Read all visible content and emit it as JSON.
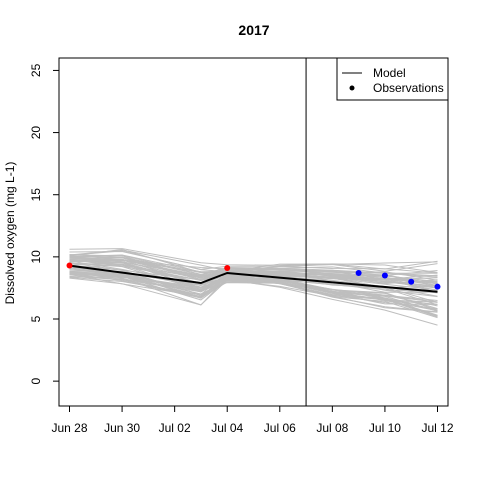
{
  "chart_data": {
    "type": "line",
    "title": "2017",
    "xlabel": "",
    "ylabel": "Dissolved oxygen (mg L-1)",
    "ylim": [
      -2,
      26
    ],
    "x_range_days": [
      -0.4,
      14.4
    ],
    "x_ticks": [
      {
        "label": "Jun 28",
        "day": 0
      },
      {
        "label": "Jun 30",
        "day": 2
      },
      {
        "label": "Jul 02",
        "day": 4
      },
      {
        "label": "Jul 04",
        "day": 6
      },
      {
        "label": "Jul 06",
        "day": 8
      },
      {
        "label": "Jul 08",
        "day": 10
      },
      {
        "label": "Jul 10",
        "day": 12
      },
      {
        "label": "Jul 12",
        "day": 14
      }
    ],
    "y_ticks": [
      0,
      5,
      10,
      15,
      20,
      25
    ],
    "forecast_start_day": 9,
    "grid": false,
    "legend": {
      "position": "top-right",
      "entries": [
        {
          "label": "Model",
          "kind": "line"
        },
        {
          "label": "Observations",
          "kind": "point"
        }
      ]
    },
    "model_mean": {
      "color": "#000000",
      "points": [
        {
          "day": 0,
          "value": 9.3
        },
        {
          "day": 5,
          "value": 7.9
        },
        {
          "day": 6,
          "value": 8.7
        },
        {
          "day": 14,
          "value": 7.2
        }
      ]
    },
    "ensemble": {
      "color": "#bebebe",
      "member_count": 60,
      "spread_start": [
        8.0,
        10.8
      ],
      "spread_dip": [
        5.7,
        9.8
      ],
      "spread_jul04": [
        7.7,
        9.4
      ],
      "spread_end": [
        4.3,
        9.8
      ]
    },
    "observations": [
      {
        "day": 0,
        "value": 9.3,
        "color": "#ff0000"
      },
      {
        "day": 6,
        "value": 9.1,
        "color": "#ff0000"
      },
      {
        "day": 11,
        "value": 8.7,
        "color": "#0000ff"
      },
      {
        "day": 12,
        "value": 8.5,
        "color": "#0000ff"
      },
      {
        "day": 13,
        "value": 8.0,
        "color": "#0000ff"
      },
      {
        "day": 14,
        "value": 7.6,
        "color": "#0000ff"
      }
    ]
  }
}
